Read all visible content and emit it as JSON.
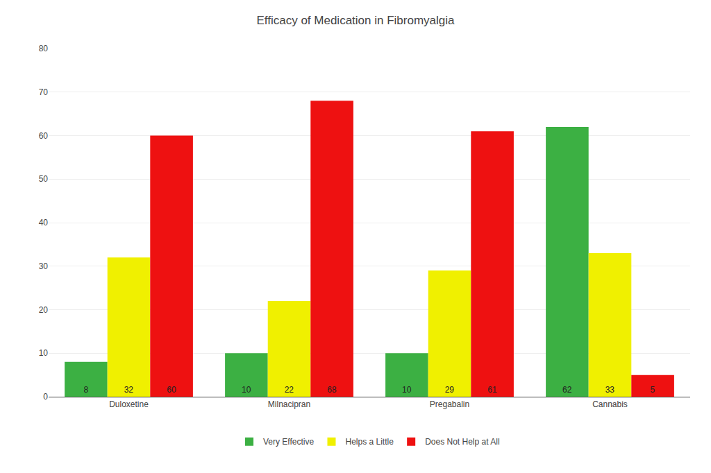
{
  "chart_data": {
    "type": "bar",
    "title": "Efficacy of Medication in Fibromyalgia",
    "categories": [
      "Duloxetine",
      "Milnacipran",
      "Pregabalin",
      "Cannabis"
    ],
    "series": [
      {
        "name": "Very Effective",
        "color": "#3cb043",
        "values": [
          8,
          10,
          10,
          62
        ]
      },
      {
        "name": "Helps a Little",
        "color": "#f0f000",
        "values": [
          32,
          22,
          29,
          33
        ]
      },
      {
        "name": "Does Not Help at All",
        "color": "#ee1111",
        "values": [
          60,
          68,
          61,
          5
        ]
      }
    ],
    "ylim": [
      0,
      80
    ],
    "yticks": [
      0,
      10,
      20,
      30,
      40,
      50,
      60,
      70,
      80
    ],
    "grid": true,
    "legend": "bottom",
    "data_labels": true
  }
}
